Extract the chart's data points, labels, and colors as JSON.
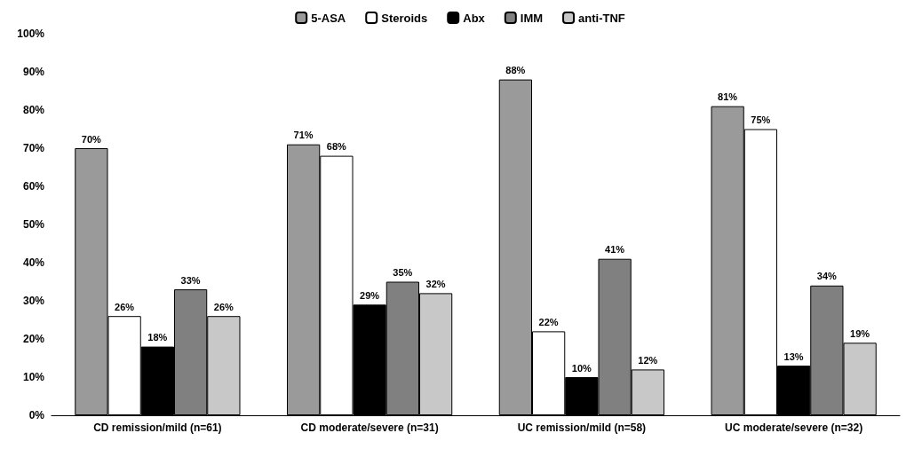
{
  "chart_data": {
    "type": "bar",
    "categories": [
      "CD remission/mild (n=61)",
      "CD moderate/severe (n=31)",
      "UC remission/mild (n=58)",
      "UC moderate/severe (n=32)"
    ],
    "series": [
      {
        "name": "5-ASA",
        "color": "#9a9a9a",
        "values": [
          70,
          71,
          88,
          81
        ],
        "value_labels": [
          "70%",
          "71%",
          "88%",
          "81%"
        ]
      },
      {
        "name": "Steroids",
        "color": "#ffffff",
        "values": [
          26,
          68,
          22,
          75
        ],
        "value_labels": [
          "26%",
          "68%",
          "22%",
          "75%"
        ]
      },
      {
        "name": "Abx",
        "color": "#000000",
        "values": [
          18,
          29,
          10,
          13
        ],
        "value_labels": [
          "18%",
          "29%",
          "10%",
          "13%"
        ]
      },
      {
        "name": "IMM",
        "color": "#808080",
        "values": [
          33,
          35,
          41,
          34
        ],
        "value_labels": [
          "33%",
          "35%",
          "41%",
          "34%"
        ]
      },
      {
        "name": "anti-TNF",
        "color": "#c8c8c8",
        "values": [
          26,
          32,
          12,
          19
        ],
        "value_labels": [
          "26%",
          "32%",
          "12%",
          "19%"
        ]
      }
    ],
    "ylim": [
      0,
      100
    ],
    "yticks": [
      {
        "value": 0,
        "label": "0%"
      },
      {
        "value": 10,
        "label": "10%"
      },
      {
        "value": 20,
        "label": "20%"
      },
      {
        "value": 30,
        "label": "30%"
      },
      {
        "value": 40,
        "label": "40%"
      },
      {
        "value": 50,
        "label": "50%"
      },
      {
        "value": 60,
        "label": "60%"
      },
      {
        "value": 70,
        "label": "70%"
      },
      {
        "value": 80,
        "label": "80%"
      },
      {
        "value": 90,
        "label": "90%"
      },
      {
        "value": 100,
        "label": "100%"
      }
    ],
    "grid": false,
    "legend": "top"
  }
}
